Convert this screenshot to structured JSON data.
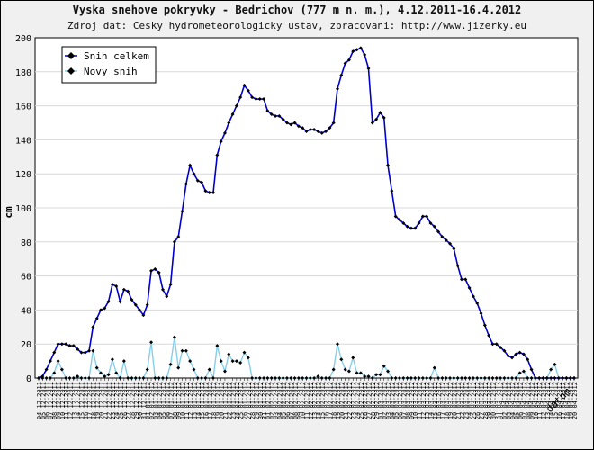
{
  "chart_data": {
    "type": "line",
    "title": "Vyska snehove pokryvky - Bedrichov (777 m n. m.), 4.12.2011-16.4.2012",
    "subtitle": "Zdroj dat: Cesky hydrometeorologicky ustav, zpracovani: http://www.jizerky.eu",
    "ylabel": "cm",
    "xlabel": "datum",
    "ylim": [
      0,
      200
    ],
    "yticks": [
      0,
      20,
      40,
      60,
      80,
      100,
      120,
      140,
      160,
      180,
      200
    ],
    "grid": true,
    "legend_position": "top-left",
    "x_start": "2011-12-04",
    "x_end": "2012-04-16",
    "series": [
      {
        "name": "Snih celkem",
        "color": "#0000cc",
        "marker": "diamond",
        "values": [
          0,
          1,
          5,
          10,
          15,
          20,
          20,
          20,
          19,
          19,
          17,
          15,
          15,
          16,
          30,
          35,
          40,
          41,
          45,
          55,
          54,
          45,
          52,
          51,
          46,
          43,
          40,
          37,
          43,
          63,
          64,
          62,
          52,
          48,
          55,
          80,
          83,
          98,
          114,
          125,
          120,
          116,
          115,
          110,
          109,
          109,
          131,
          139,
          144,
          150,
          155,
          160,
          165,
          172,
          169,
          165,
          164,
          164,
          164,
          157,
          155,
          154,
          154,
          152,
          150,
          149,
          150,
          148,
          147,
          145,
          146,
          146,
          145,
          144,
          145,
          147,
          150,
          170,
          178,
          185,
          187,
          192,
          193,
          194,
          190,
          182,
          150,
          152,
          156,
          153,
          125,
          110,
          95,
          93,
          91,
          89,
          88,
          88,
          91,
          95,
          95,
          91,
          89,
          86,
          83,
          81,
          79,
          76,
          66,
          58,
          58,
          53,
          48,
          44,
          38,
          31,
          25,
          20,
          20,
          18,
          16,
          13,
          12,
          14,
          15,
          14,
          11,
          5,
          0,
          0,
          0,
          0,
          0,
          0,
          0,
          0,
          0,
          0,
          0
        ]
      },
      {
        "name": "Novy snih",
        "color": "#87ceeb",
        "marker": "diamond",
        "values": [
          0,
          0,
          0,
          0,
          3,
          10,
          5,
          0,
          0,
          0,
          1,
          0,
          0,
          0,
          16,
          6,
          3,
          1,
          2,
          11,
          3,
          0,
          10,
          0,
          0,
          0,
          0,
          0,
          5,
          21,
          0,
          0,
          0,
          0,
          8,
          24,
          6,
          16,
          16,
          10,
          5,
          0,
          0,
          0,
          5,
          0,
          19,
          10,
          4,
          14,
          10,
          10,
          9,
          15,
          12,
          0,
          0,
          0,
          0,
          0,
          0,
          0,
          0,
          0,
          0,
          0,
          0,
          0,
          0,
          0,
          0,
          0,
          1,
          0,
          0,
          0,
          5,
          20,
          11,
          5,
          4,
          12,
          3,
          3,
          1,
          1,
          0,
          2,
          2,
          7,
          4,
          0,
          0,
          0,
          0,
          0,
          0,
          0,
          0,
          0,
          0,
          0,
          6,
          0,
          0,
          0,
          0,
          0,
          0,
          0,
          0,
          0,
          0,
          0,
          0,
          0,
          0,
          0,
          0,
          0,
          0,
          0,
          0,
          0,
          3,
          4,
          0,
          0,
          0,
          0,
          0,
          0,
          5,
          8,
          0,
          0,
          0,
          0,
          0
        ]
      }
    ]
  }
}
